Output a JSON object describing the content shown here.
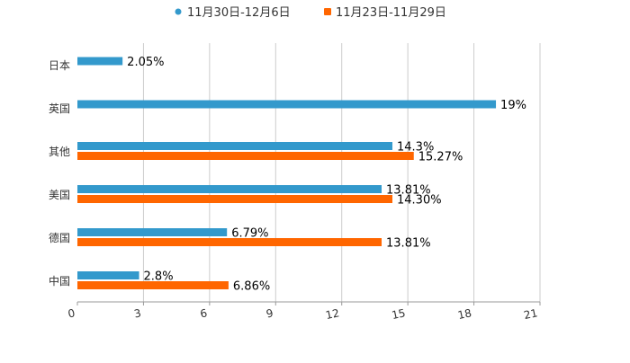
{
  "chart_data": {
    "type": "bar",
    "orientation": "horizontal",
    "categories": [
      "日本",
      "英国",
      "其他",
      "美国",
      "德国",
      "中国"
    ],
    "series": [
      {
        "name": "11月30日-12月6日",
        "color": "#3399CC",
        "values": [
          2.05,
          19,
          14.3,
          13.81,
          6.79,
          2.8
        ],
        "labels": [
          "2.05%",
          "19%",
          "14.3%",
          "13.81%",
          "6.79%",
          "2.8%"
        ]
      },
      {
        "name": "11月23日-11月29日",
        "color": "#FF6600",
        "values": [
          null,
          null,
          15.27,
          14.3,
          13.81,
          6.86
        ],
        "labels": [
          null,
          null,
          "15.27%",
          "14.30%",
          "13.81%",
          "6.86%"
        ]
      }
    ],
    "xlim": [
      0,
      21
    ],
    "xticks": [
      0,
      3,
      6,
      9,
      12,
      15,
      18,
      21
    ],
    "grid": true,
    "legend_position": "top-center",
    "title": "",
    "xlabel": "",
    "ylabel": ""
  }
}
